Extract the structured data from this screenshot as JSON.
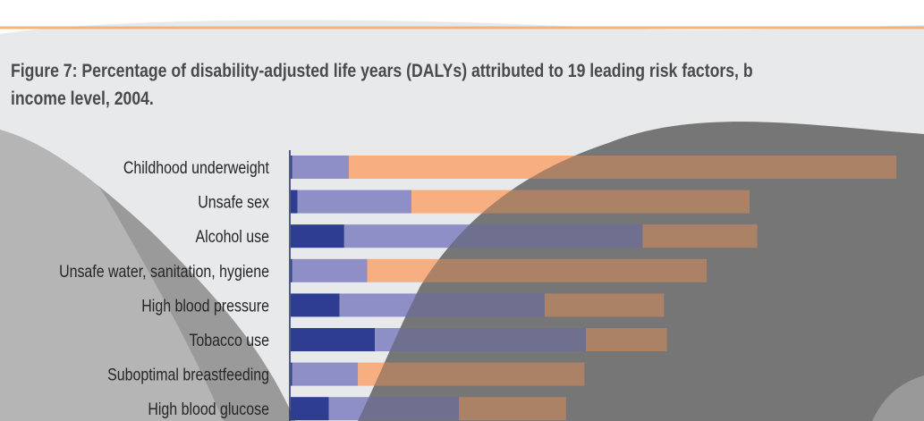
{
  "title_lines": [
    "Figure 7: Percentage of disability-adjusted life years (DALYs) attributed to 19 leading risk factors, b",
    "income level, 2004."
  ],
  "colors": {
    "background": "#e8e9ea",
    "shadow": "#9a9a9a",
    "header_line": "#f0b27e",
    "title": "#4a4a4a",
    "bar_dark": "#2e3d91",
    "bar_light": "#8d8fc6",
    "bar_orange": "#f7ae80",
    "axis": "#1f2a6e"
  },
  "chart_data": {
    "type": "bar",
    "orientation": "horizontal",
    "stacked": true,
    "title": "Figure 7: Percentage of disability-adjusted life years (DALYs) attributed to 19 leading risk factors, b income level, 2004.",
    "categories": [
      "Childhood underweight",
      "Unsafe sex",
      "Alcohol use",
      "Unsafe water, sanitation, hygiene",
      "High blood pressure",
      "Tobacco use",
      "Suboptimal breastfeeding",
      "High blood glucose"
    ],
    "series": [
      {
        "color": "#2e3d91",
        "values": [
          0.1,
          0.45,
          3.5,
          0.1,
          3.2,
          5.5,
          0.1,
          2.5
        ]
      },
      {
        "color": "#8d8fc6",
        "values": [
          3.7,
          7.45,
          19.5,
          4.9,
          13.4,
          13.8,
          4.3,
          8.5
        ]
      },
      {
        "color": "#f7ae80",
        "values": [
          35.8,
          22.1,
          7.5,
          22.2,
          7.8,
          5.3,
          14.8,
          7.0
        ]
      }
    ],
    "xlim": [
      0,
      40
    ]
  }
}
